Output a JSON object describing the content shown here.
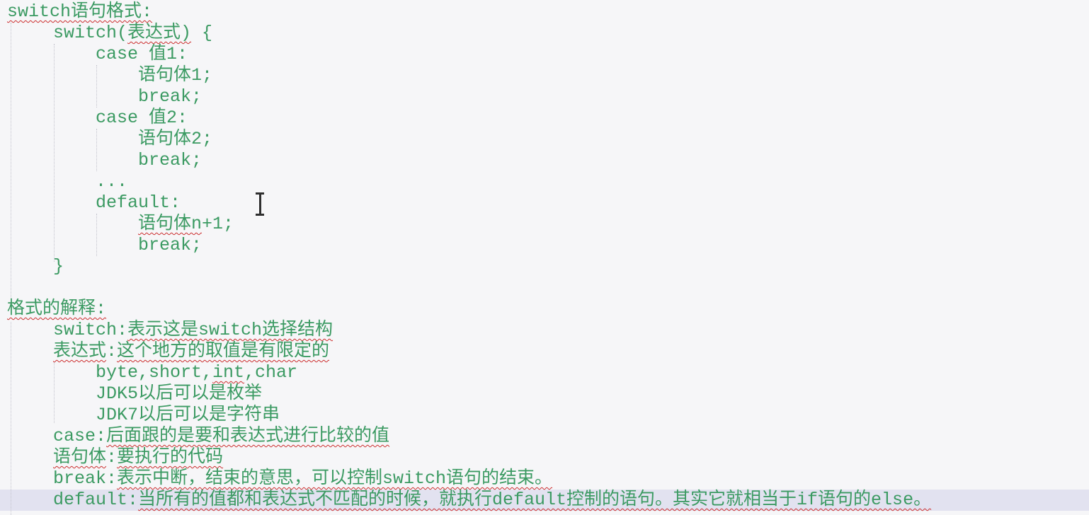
{
  "colors": {
    "background": "#f6f6f8",
    "text": "#3b9a62",
    "squiggle": "#cc2d2d",
    "current_line_highlight": "#e2e2f0",
    "indent_guide": "#c2c2cc",
    "cursor": "#2f2f2f"
  },
  "cursor": {
    "shape": "i-beam-text-cursor"
  },
  "editor": {
    "lines": [
      {
        "indent": 0,
        "segments": [
          {
            "text": "switch语句格式:",
            "misspelled": true
          }
        ]
      },
      {
        "indent": 1,
        "segments": [
          {
            "text": "switch(",
            "misspelled": false
          },
          {
            "text": "表达式)",
            "misspelled": true
          },
          {
            "text": " {",
            "misspelled": false
          }
        ]
      },
      {
        "indent": 2,
        "segments": [
          {
            "text": "case 值1:",
            "misspelled": false
          }
        ]
      },
      {
        "indent": 3,
        "segments": [
          {
            "text": "语句体1;",
            "misspelled": false
          }
        ]
      },
      {
        "indent": 3,
        "segments": [
          {
            "text": "break;",
            "misspelled": false
          }
        ]
      },
      {
        "indent": 2,
        "segments": [
          {
            "text": "case 值2:",
            "misspelled": false
          }
        ]
      },
      {
        "indent": 3,
        "segments": [
          {
            "text": "语句体2;",
            "misspelled": false
          }
        ]
      },
      {
        "indent": 3,
        "segments": [
          {
            "text": "break;",
            "misspelled": false
          }
        ]
      },
      {
        "indent": 2,
        "segments": [
          {
            "text": "...",
            "misspelled": false
          }
        ]
      },
      {
        "indent": 2,
        "segments": [
          {
            "text": "default:",
            "misspelled": false
          }
        ]
      },
      {
        "indent": 3,
        "segments": [
          {
            "text": "语句体n",
            "misspelled": true
          },
          {
            "text": "+1;",
            "misspelled": false
          }
        ]
      },
      {
        "indent": 3,
        "segments": [
          {
            "text": "break;",
            "misspelled": false
          }
        ]
      },
      {
        "indent": 1,
        "segments": [
          {
            "text": "}",
            "misspelled": false
          }
        ]
      },
      {
        "indent": 0,
        "segments": []
      },
      {
        "indent": 0,
        "segments": [
          {
            "text": "格式的解释:",
            "misspelled": true
          }
        ]
      },
      {
        "indent": 1,
        "segments": [
          {
            "text": "switch:",
            "misspelled": false
          },
          {
            "text": "表示这是switch选择结构",
            "misspelled": true
          }
        ]
      },
      {
        "indent": 1,
        "segments": [
          {
            "text": "表达式",
            "misspelled": true
          },
          {
            "text": ":",
            "misspelled": false
          },
          {
            "text": "这个地方的取值是有限定的",
            "misspelled": true
          }
        ]
      },
      {
        "indent": 2,
        "segments": [
          {
            "text": "byte,short,",
            "misspelled": false
          },
          {
            "text": "int",
            "misspelled": true
          },
          {
            "text": ",char",
            "misspelled": false
          }
        ]
      },
      {
        "indent": 2,
        "segments": [
          {
            "text": "JDK5以后可以是枚举",
            "misspelled": false
          }
        ]
      },
      {
        "indent": 2,
        "segments": [
          {
            "text": "JDK7以后可以是字符串",
            "misspelled": false
          }
        ]
      },
      {
        "indent": 1,
        "segments": [
          {
            "text": "case:",
            "misspelled": false
          },
          {
            "text": "后面跟的是要和表达式进行比较的值",
            "misspelled": true
          }
        ]
      },
      {
        "indent": 1,
        "segments": [
          {
            "text": "语句体",
            "misspelled": true
          },
          {
            "text": ":",
            "misspelled": false
          },
          {
            "text": "要执行的代码",
            "misspelled": true
          }
        ]
      },
      {
        "indent": 1,
        "segments": [
          {
            "text": "break:",
            "misspelled": false
          },
          {
            "text": "表示中断，结束的意思，可以控制switch语句的结束。",
            "misspelled": true
          }
        ]
      },
      {
        "indent": 1,
        "current": true,
        "segments": [
          {
            "text": "default:",
            "misspelled": false
          },
          {
            "text": "当所有的值都和表达式不匹配的时候，就执行default控制的语句。其实它就相当于if语句的else。",
            "misspelled": true
          }
        ]
      }
    ]
  }
}
